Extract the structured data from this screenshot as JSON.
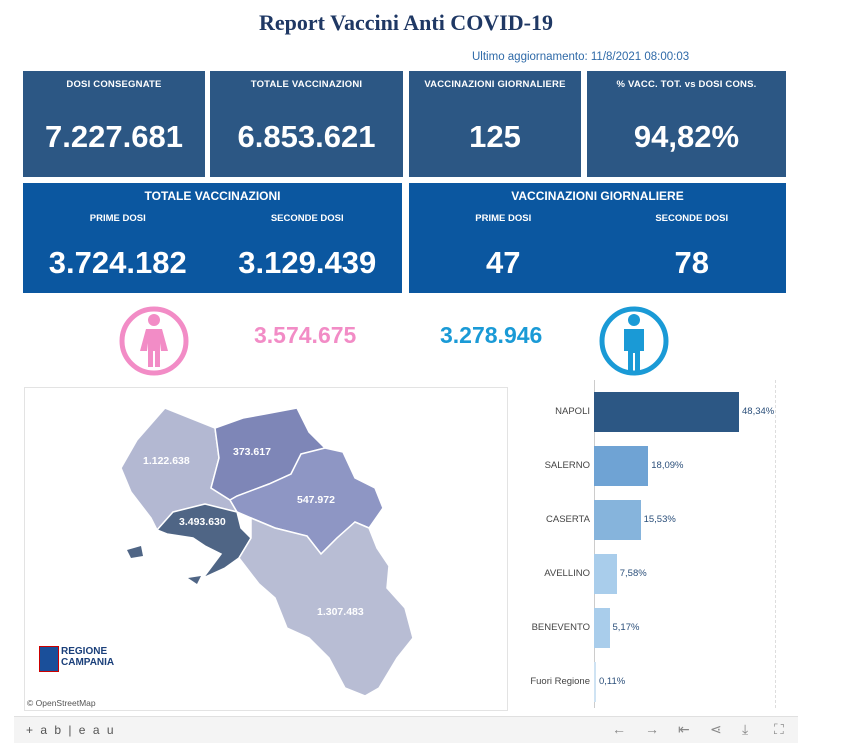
{
  "header": {
    "title": "Report Vaccini Anti COVID-19",
    "updated": "Ultimo aggiornamento: 11/8/2021 08:00:03"
  },
  "kpis": [
    {
      "label": "DOSI CONSEGNATE",
      "value": "7.227.681"
    },
    {
      "label": "TOTALE VACCINAZIONI",
      "value": "6.853.621"
    },
    {
      "label": "VACCINAZIONI GIORNALIERE",
      "value": "125"
    },
    {
      "label": "% VACC. TOT. vs DOSI CONS.",
      "value": "94,82%"
    }
  ],
  "totale": {
    "title": "TOTALE VACCINAZIONI",
    "prime_label": "PRIME DOSI",
    "prime_value": "3.724.182",
    "seconde_label": "SECONDE DOSI",
    "seconde_value": "3.129.439"
  },
  "giornaliere": {
    "title": "VACCINAZIONI GIORNALIERE",
    "prime_label": "PRIME DOSI",
    "prime_value": "47",
    "seconde_label": "SECONDE DOSI",
    "seconde_value": "78"
  },
  "gender": {
    "female_value": "3.574.675",
    "male_value": "3.278.946",
    "female_color": "#f28cc6",
    "male_color": "#1a9ad6"
  },
  "map": {
    "labels": {
      "caserta": "1.122.638",
      "benevento": "373.617",
      "avellino": "547.972",
      "napoli": "3.493.630",
      "salerno": "1.307.483"
    },
    "logo_line1": "REGIONE",
    "logo_line2": "CAMPANIA",
    "attribution": "© OpenStreetMap"
  },
  "chart_data": {
    "type": "bar",
    "orientation": "horizontal",
    "categories": [
      "NAPOLI",
      "SALERNO",
      "CASERTA",
      "AVELLINO",
      "BENEVENTO",
      "Fuori Regione"
    ],
    "values": [
      48.34,
      18.09,
      15.53,
      7.58,
      5.17,
      0.11
    ],
    "value_labels": [
      "48,34%",
      "18,09%",
      "15,53%",
      "7,58%",
      "5,17%",
      "0,11%"
    ],
    "colors": [
      "#2c5784",
      "#6fa3d4",
      "#86b4dc",
      "#a9cdeb",
      "#a9cdeb",
      "#cfe3f3"
    ],
    "title": "",
    "xlabel": "",
    "ylabel": ""
  },
  "footer": {
    "brand": "+ a b | e a u"
  }
}
